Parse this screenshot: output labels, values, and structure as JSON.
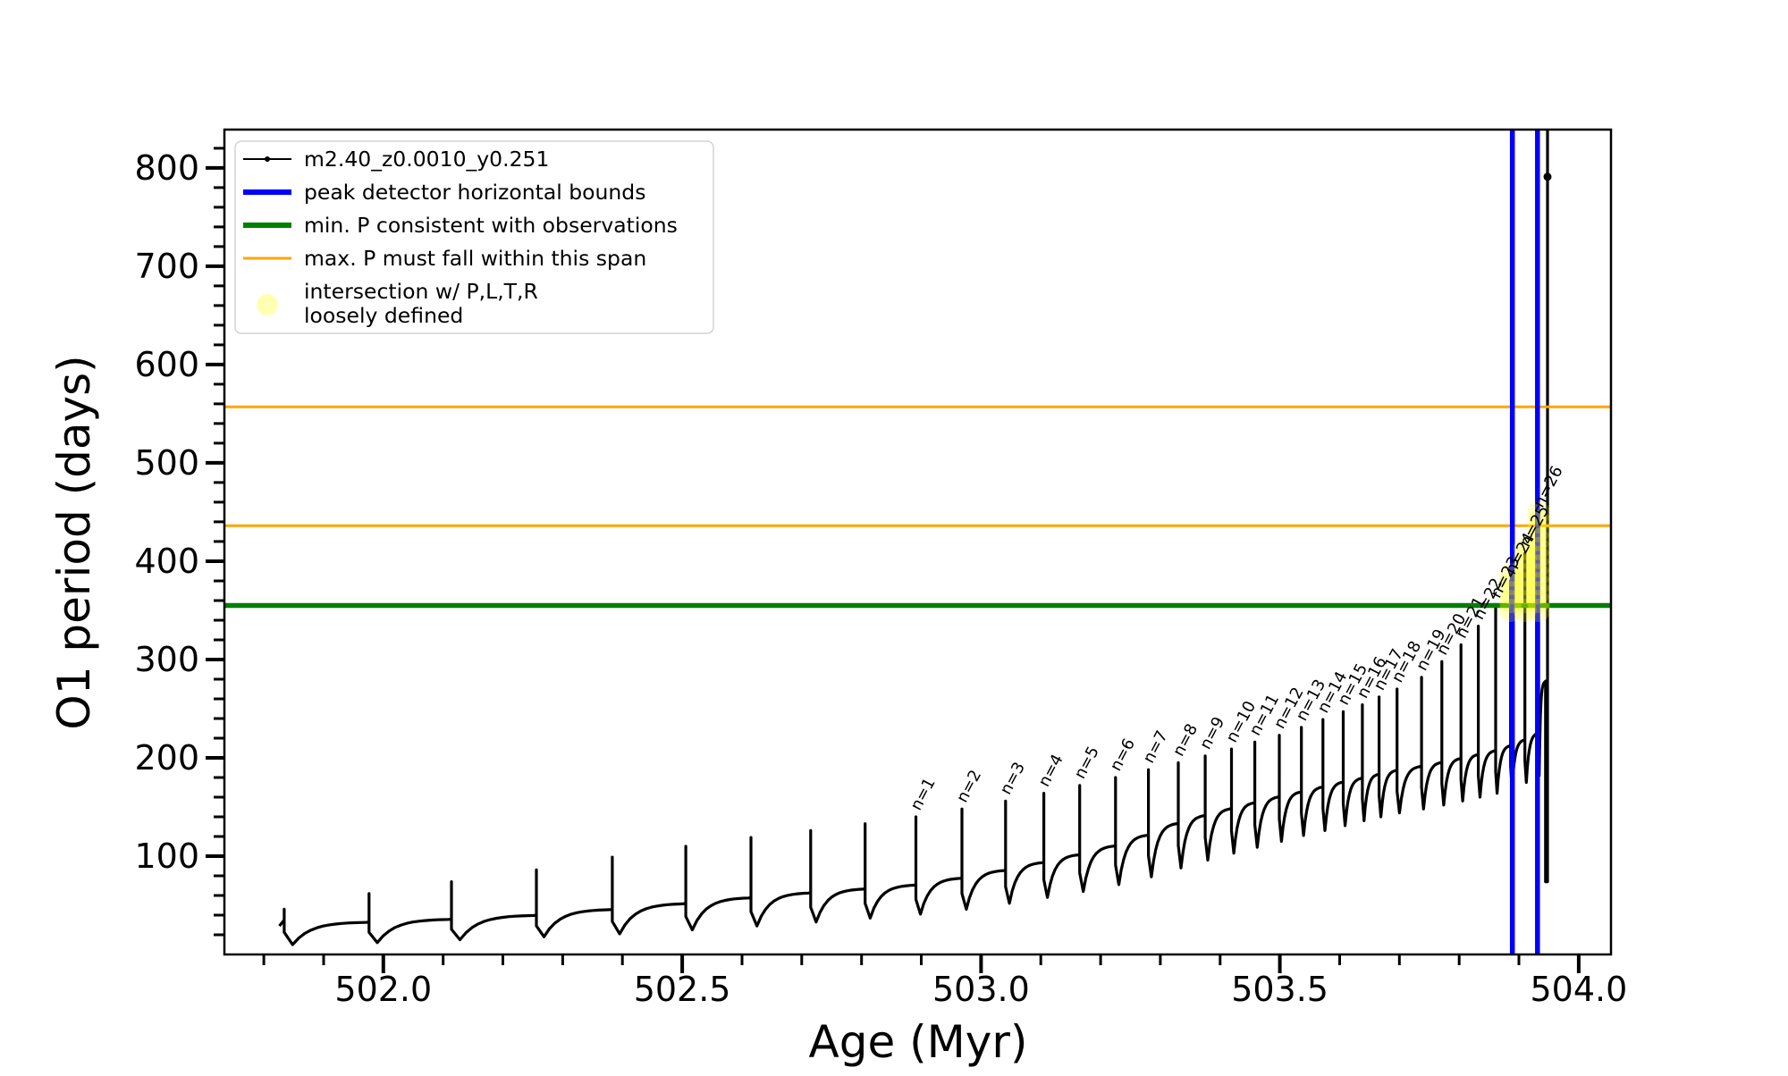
{
  "figure": {
    "xlabel": "Age (Myr)",
    "ylabel": "O1 period (days)"
  },
  "legend": {
    "series_label": "m2.40_z0.0010_y0.251",
    "blue_label": "peak detector horizontal bounds",
    "green_label": "min. P consistent with observations",
    "orange_label": "max. P must fall within this span",
    "yellow_label_line1": "intersection w/ P,L,T,R",
    "yellow_label_line2": "loosely defined"
  },
  "colors": {
    "series": "#000000",
    "peak_bounds_blue": "#0000ff",
    "min_p_green": "#008000",
    "max_p_orange": "#ffa500",
    "intersection_yellow": "#ffff00",
    "legend_border": "#d4d4d4"
  },
  "chart_data": {
    "type": "line",
    "title": "",
    "xlabel": "Age (Myr)",
    "ylabel": "O1 period (days)",
    "series_name": "m2.40_z0.0010_y0.251",
    "xlim": [
      501.734,
      504.054
    ],
    "ylim": [
      0,
      839
    ],
    "x_ticks": [
      502.0,
      502.5,
      503.0,
      503.5,
      504.0
    ],
    "x_minor_step": 0.1,
    "y_ticks": [
      100,
      200,
      300,
      400,
      500,
      600,
      700,
      800
    ],
    "y_minor_step": 20,
    "grid": false,
    "legend_position": "upper left",
    "hlines": {
      "min_P_consistent_green": 355,
      "max_P_span_orange": [
        436,
        557
      ]
    },
    "vlines_peak_detector_blue": [
      503.889,
      503.931
    ],
    "intersection_region": {
      "x": [
        503.878,
        503.945
      ],
      "y": [
        350,
        455
      ]
    },
    "pulses": [
      {
        "x": 501.834,
        "base": 35,
        "top": 46,
        "dip": 10,
        "label": null
      },
      {
        "x": 501.976,
        "base": 33,
        "top": 62,
        "dip": 12,
        "label": null
      },
      {
        "x": 502.114,
        "base": 36,
        "top": 74,
        "dip": 15,
        "label": null
      },
      {
        "x": 502.256,
        "base": 40,
        "top": 86,
        "dip": 18,
        "label": null
      },
      {
        "x": 502.383,
        "base": 46,
        "top": 99,
        "dip": 21,
        "label": null
      },
      {
        "x": 502.506,
        "base": 52,
        "top": 110,
        "dip": 25,
        "label": null
      },
      {
        "x": 502.615,
        "base": 58,
        "top": 119,
        "dip": 29,
        "label": null
      },
      {
        "x": 502.715,
        "base": 63,
        "top": 126,
        "dip": 33,
        "label": null
      },
      {
        "x": 502.806,
        "base": 67,
        "top": 133,
        "dip": 37,
        "label": null
      },
      {
        "x": 502.891,
        "base": 71,
        "top": 140,
        "dip": 41,
        "label": "n=1"
      },
      {
        "x": 502.968,
        "base": 78,
        "top": 148,
        "dip": 46,
        "label": "n=2"
      },
      {
        "x": 503.041,
        "base": 86,
        "top": 156,
        "dip": 52,
        "label": "n=3"
      },
      {
        "x": 503.105,
        "base": 94,
        "top": 164,
        "dip": 58,
        "label": "n=4"
      },
      {
        "x": 503.165,
        "base": 102,
        "top": 172,
        "dip": 64,
        "label": "n=5"
      },
      {
        "x": 503.225,
        "base": 111,
        "top": 180,
        "dip": 71,
        "label": "n=6"
      },
      {
        "x": 503.28,
        "base": 122,
        "top": 188,
        "dip": 79,
        "label": "n=7"
      },
      {
        "x": 503.33,
        "base": 134,
        "top": 195,
        "dip": 88,
        "label": "n=8"
      },
      {
        "x": 503.375,
        "base": 142,
        "top": 202,
        "dip": 96,
        "label": "n=9"
      },
      {
        "x": 503.419,
        "base": 149,
        "top": 209,
        "dip": 103,
        "label": "n=10"
      },
      {
        "x": 503.458,
        "base": 155,
        "top": 216,
        "dip": 109,
        "label": "n=11"
      },
      {
        "x": 503.499,
        "base": 161,
        "top": 223,
        "dip": 115,
        "label": "n=12"
      },
      {
        "x": 503.536,
        "base": 166,
        "top": 231,
        "dip": 121,
        "label": "n=13"
      },
      {
        "x": 503.572,
        "base": 171,
        "top": 239,
        "dip": 126,
        "label": "n=14"
      },
      {
        "x": 503.606,
        "base": 176,
        "top": 247,
        "dip": 131,
        "label": "n=15"
      },
      {
        "x": 503.638,
        "base": 180,
        "top": 254,
        "dip": 136,
        "label": "n=16"
      },
      {
        "x": 503.666,
        "base": 184,
        "top": 262,
        "dip": 140,
        "label": "n=17"
      },
      {
        "x": 503.696,
        "base": 188,
        "top": 270,
        "dip": 144,
        "label": "n=18"
      },
      {
        "x": 503.737,
        "base": 192,
        "top": 282,
        "dip": 148,
        "label": "n=19"
      },
      {
        "x": 503.771,
        "base": 196,
        "top": 298,
        "dip": 152,
        "label": "n=20"
      },
      {
        "x": 503.803,
        "base": 200,
        "top": 315,
        "dip": 156,
        "label": "n=21"
      },
      {
        "x": 503.832,
        "base": 204,
        "top": 334,
        "dip": 160,
        "label": "n=22"
      },
      {
        "x": 503.861,
        "base": 208,
        "top": 356,
        "dip": 164,
        "label": "n=23"
      },
      {
        "x": 503.886,
        "base": 213,
        "top": 380,
        "dip": 169,
        "label": "n=24"
      },
      {
        "x": 503.91,
        "base": 219,
        "top": 408,
        "dip": 175,
        "label": "n=25"
      },
      {
        "x": 503.933,
        "base": 226,
        "top": 448,
        "dip": 182,
        "label": "n=26"
      }
    ],
    "final_segment": {
      "peak_x": 503.9425,
      "peak_y": 278,
      "drop_x": 503.9445,
      "drop_y": 74,
      "rise_x": 503.9478,
      "rise_top": 839,
      "end_marker_y": 791
    }
  }
}
